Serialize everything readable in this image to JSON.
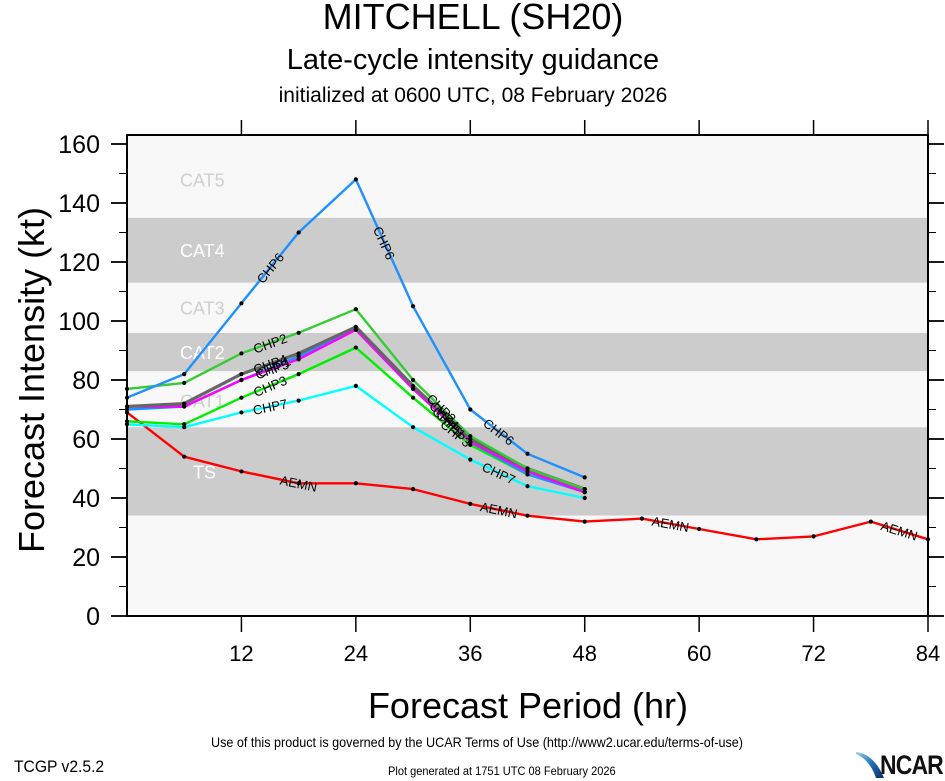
{
  "header": {
    "storm": "MITCHELL (SH20)",
    "subtitle": "Late-cycle intensity guidance",
    "init": "initialized at 0600 UTC, 08 February 2026"
  },
  "footer": {
    "terms": "Use of this product is governed by the UCAR Terms of Use (http://www2.ucar.edu/terms-of-use)",
    "version": "TCGP v2.5.2",
    "generated": "Plot generated at 1751 UTC   08 February 2026",
    "logo_text": "NCAR",
    "logo_icon": "ncar-swoosh-icon"
  },
  "chart_data": {
    "type": "line",
    "title": "MITCHELL (SH20) Late-cycle intensity guidance",
    "xlabel": "Forecast Period (hr)",
    "ylabel": "Forecast Intensity (kt)",
    "xlim": [
      0,
      84
    ],
    "ylim": [
      0,
      163
    ],
    "xticks": [
      12,
      24,
      36,
      48,
      60,
      72,
      84
    ],
    "xtick_labels": [
      "12",
      "24",
      "36",
      "48",
      "60",
      "72",
      "84"
    ],
    "yticks": [
      0,
      20,
      40,
      60,
      80,
      100,
      120,
      140,
      160
    ],
    "ytick_labels": [
      "0",
      "20",
      "40",
      "60",
      "80",
      "100",
      "120",
      "140",
      "160"
    ],
    "grid": false,
    "legend": "none (inline line labels)",
    "bands": [
      {
        "label": "TS",
        "from": 34,
        "to": 64,
        "shade": "gray"
      },
      {
        "label": "CAT1",
        "from": 64,
        "to": 83,
        "shade": "light"
      },
      {
        "label": "CAT2",
        "from": 83,
        "to": 96,
        "shade": "gray"
      },
      {
        "label": "CAT3",
        "from": 96,
        "to": 113,
        "shade": "light"
      },
      {
        "label": "CAT4",
        "from": 113,
        "to": 135,
        "shade": "gray"
      },
      {
        "label": "CAT5",
        "from": 135,
        "to": 163,
        "shade": "light"
      }
    ],
    "series": [
      {
        "name": "AEMN",
        "color": "#ff0000",
        "x": [
          0,
          6,
          12,
          18,
          24,
          30,
          36,
          42,
          48,
          54,
          60,
          66,
          72,
          78,
          84
        ],
        "values": [
          69,
          54,
          49,
          45,
          45,
          43,
          38,
          34,
          32,
          33,
          29.5,
          26,
          27,
          32,
          26
        ]
      },
      {
        "name": "CHP7",
        "color": "#00ffff",
        "x": [
          0,
          6,
          12,
          18,
          24,
          30,
          36,
          42,
          48
        ],
        "values": [
          65,
          64,
          69,
          73,
          78,
          64,
          53,
          44,
          40
        ]
      },
      {
        "name": "CHP3",
        "color": "#00ee00",
        "x": [
          0,
          6,
          12,
          18,
          24,
          30,
          36,
          42,
          48
        ],
        "values": [
          66,
          65,
          74,
          82,
          91,
          74,
          58,
          48,
          42
        ]
      },
      {
        "name": "CHP1",
        "color": "#1e90ff",
        "x": [
          0,
          6,
          12,
          18,
          24,
          30,
          36,
          42,
          48
        ],
        "values": [
          70,
          71,
          80,
          88,
          97,
          77,
          59,
          48,
          42
        ]
      },
      {
        "name": "CHP5",
        "color": "#ff00ff",
        "x": [
          0,
          6,
          12,
          18,
          24,
          30,
          36,
          42,
          48
        ],
        "values": [
          71,
          71,
          80,
          87,
          97,
          77,
          59,
          49,
          42
        ]
      },
      {
        "name": "CHP4",
        "color": "#666666",
        "x": [
          0,
          6,
          12,
          18,
          24,
          30,
          36,
          42,
          48
        ],
        "values": [
          71,
          72,
          82,
          89,
          98,
          78,
          60,
          50,
          43
        ]
      },
      {
        "name": "CHP2",
        "color": "#33cc33",
        "x": [
          0,
          6,
          12,
          18,
          24,
          30,
          36,
          42,
          48
        ],
        "values": [
          77,
          79,
          89,
          96,
          104,
          80,
          61,
          50,
          43
        ]
      },
      {
        "name": "CHP6",
        "color": "#1e90ff",
        "x": [
          0,
          6,
          12,
          18,
          24,
          30,
          36,
          42,
          48
        ],
        "values": [
          74,
          82,
          106,
          130,
          148,
          105,
          70,
          55,
          47
        ]
      }
    ],
    "line_labels": [
      {
        "series": "CHP6",
        "at": 15
      },
      {
        "series": "CHP6",
        "at": 27
      },
      {
        "series": "CHP6",
        "at": 39
      },
      {
        "series": "CHP2",
        "at": 15
      },
      {
        "series": "CHP4",
        "at": 15
      },
      {
        "series": "CHP5",
        "at": 15.2
      },
      {
        "series": "CHP1",
        "at": 15.4
      },
      {
        "series": "CHP3",
        "at": 15
      },
      {
        "series": "CHP7",
        "at": 15
      },
      {
        "series": "CHP2",
        "at": 33
      },
      {
        "series": "CHP4",
        "at": 33.3
      },
      {
        "series": "CHP5",
        "at": 33.6
      },
      {
        "series": "CHP1",
        "at": 34
      },
      {
        "series": "CHP3",
        "at": 34.5
      },
      {
        "series": "CHP7",
        "at": 39
      },
      {
        "series": "AEMN",
        "at": 18
      },
      {
        "series": "AEMN",
        "at": 39
      },
      {
        "series": "AEMN",
        "at": 57
      },
      {
        "series": "AEMN",
        "at": 81
      }
    ]
  }
}
